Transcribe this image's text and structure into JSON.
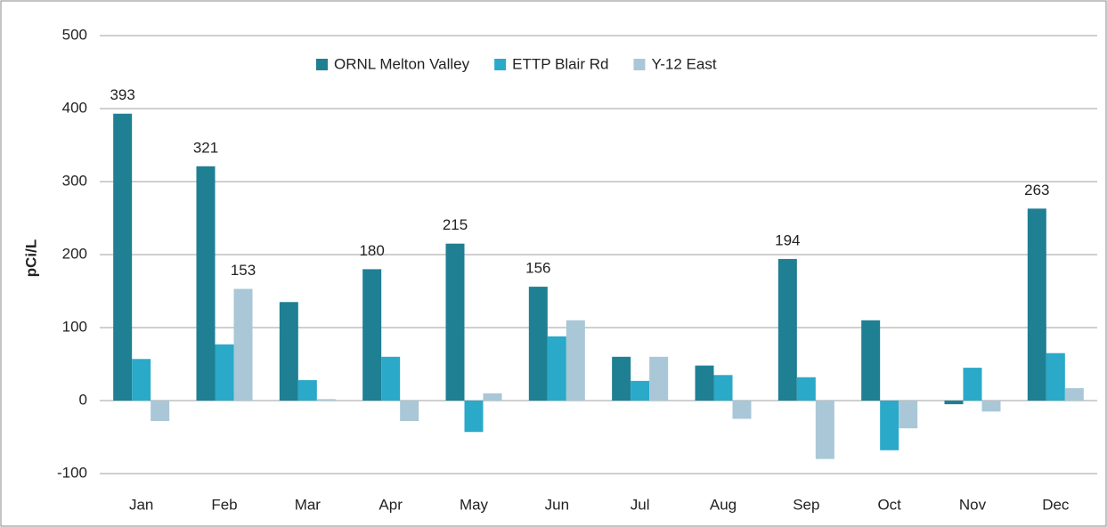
{
  "chart_data": {
    "type": "bar",
    "y_label": "pCi/L",
    "categories": [
      "Jan",
      "Feb",
      "Mar",
      "Apr",
      "May",
      "Jun",
      "Jul",
      "Aug",
      "Sep",
      "Oct",
      "Nov",
      "Dec"
    ],
    "series": [
      {
        "name": "ORNL Melton Valley",
        "color": "#1f7f93",
        "values": [
          393,
          321,
          135,
          180,
          215,
          156,
          60,
          48,
          194,
          110,
          -5,
          263
        ],
        "value_labels": [
          "393",
          "321",
          null,
          "180",
          "215",
          "156",
          null,
          null,
          "194",
          null,
          null,
          "263"
        ]
      },
      {
        "name": "ETTP Blair Rd",
        "color": "#2aa9c9",
        "values": [
          57,
          77,
          28,
          60,
          -43,
          88,
          27,
          35,
          32,
          -68,
          45,
          65
        ]
      },
      {
        "name": "Y-12 East",
        "color": "#a9c7d6",
        "values": [
          -28,
          153,
          2,
          -28,
          10,
          110,
          60,
          -25,
          -80,
          -38,
          -15,
          17
        ],
        "value_labels": [
          null,
          "153",
          null,
          null,
          null,
          null,
          null,
          null,
          null,
          null,
          null,
          null
        ]
      }
    ],
    "ylim": [
      -100,
      500
    ],
    "yticks": [
      -100,
      0,
      100,
      200,
      300,
      400,
      500
    ],
    "grid": true,
    "legend": "top"
  }
}
